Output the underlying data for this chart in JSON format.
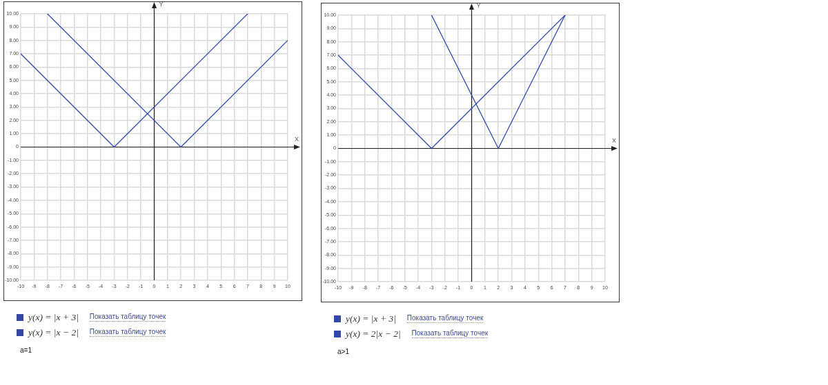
{
  "chart_data": [
    {
      "type": "line",
      "xlabel": "X",
      "ylabel": "Y",
      "xlim": [
        -10,
        10
      ],
      "ylim": [
        -10,
        10
      ],
      "xticks": [
        -10,
        -9,
        -8,
        -7,
        -6,
        -5,
        -4,
        -3,
        -2,
        -1,
        0,
        1,
        2,
        3,
        4,
        5,
        6,
        7,
        8,
        9,
        10
      ],
      "yticks": [
        {
          "value": -10,
          "label": "-10.00"
        },
        {
          "value": -9,
          "label": "-9.00"
        },
        {
          "value": -8,
          "label": "-8.00"
        },
        {
          "value": -7,
          "label": "-7.00"
        },
        {
          "value": -6,
          "label": "-6.00"
        },
        {
          "value": -5,
          "label": "-5.00"
        },
        {
          "value": -4,
          "label": "-4.00"
        },
        {
          "value": -3,
          "label": "-3.00"
        },
        {
          "value": -2,
          "label": "-2.00"
        },
        {
          "value": -1,
          "label": "-1.00"
        },
        0,
        {
          "value": 1,
          "label": "1.00"
        },
        {
          "value": 2,
          "label": "2.00"
        },
        {
          "value": 3,
          "label": "3.00"
        },
        {
          "value": 4,
          "label": "4.00"
        },
        {
          "value": 5,
          "label": "5.00"
        },
        {
          "value": 6,
          "label": "6.00"
        },
        {
          "value": 7,
          "label": "7.00"
        },
        {
          "value": 8,
          "label": "8.00"
        },
        {
          "value": 9,
          "label": "9.00"
        },
        {
          "value": 10,
          "label": "10.00"
        }
      ],
      "grid": true,
      "legend": "bottom left",
      "marker": "none",
      "line_style": "solid",
      "series": [
        {
          "name": "y(x) = |x + 3|",
          "color": "#3148a8",
          "x": [
            -10,
            -3,
            7
          ],
          "values": [
            7,
            0,
            10
          ]
        },
        {
          "name": "y(x) = |x − 2|",
          "color": "#3148a8",
          "x": [
            -8,
            2,
            10
          ],
          "values": [
            10,
            0,
            8
          ]
        }
      ],
      "annotations": [
        "Показать таблицу точек",
        "Показать таблицу точек",
        "a=1"
      ]
    },
    {
      "type": "line",
      "xlabel": "X",
      "ylabel": "Y",
      "xlim": [
        -10,
        10
      ],
      "ylim": [
        -10,
        10
      ],
      "xticks": [
        -10,
        -9,
        -8,
        -7,
        -6,
        -5,
        -4,
        -3,
        -2,
        -1,
        0,
        1,
        2,
        3,
        4,
        5,
        6,
        7,
        8,
        9,
        10
      ],
      "yticks": [
        {
          "value": -10,
          "label": "-10.00"
        },
        {
          "value": -9,
          "label": "-9.00"
        },
        {
          "value": -8,
          "label": "-8.00"
        },
        {
          "value": -7,
          "label": "-7.00"
        },
        {
          "value": -6,
          "label": "-6.00"
        },
        {
          "value": -5,
          "label": "-5.00"
        },
        {
          "value": -4,
          "label": "-4.00"
        },
        {
          "value": -3,
          "label": "-3.00"
        },
        {
          "value": -2,
          "label": "-2.00"
        },
        {
          "value": -1,
          "label": "-1.00"
        },
        0,
        {
          "value": 1,
          "label": "1.00"
        },
        {
          "value": 2,
          "label": "2.00"
        },
        {
          "value": 3,
          "label": "3.00"
        },
        {
          "value": 4,
          "label": "4.00"
        },
        {
          "value": 5,
          "label": "5.00"
        },
        {
          "value": 6,
          "label": "6.00"
        },
        {
          "value": 7,
          "label": "7.00"
        },
        {
          "value": 8,
          "label": "8.00"
        },
        {
          "value": 9,
          "label": "9.00"
        },
        {
          "value": 10,
          "label": "10.00"
        }
      ],
      "grid": true,
      "legend": "bottom left",
      "marker": "none",
      "line_style": "solid",
      "series": [
        {
          "name": "y(x) = |x + 3|",
          "color": "#3148a8",
          "x": [
            -10,
            -3,
            7
          ],
          "values": [
            7,
            0,
            10
          ]
        },
        {
          "name": "y(x) = 2|x − 2|",
          "color": "#3148a8",
          "x": [
            -3,
            2,
            7
          ],
          "values": [
            10,
            0,
            10
          ]
        }
      ],
      "annotations": [
        "Показать таблицу точек",
        "Показать таблицу точек",
        "a>1"
      ]
    }
  ]
}
